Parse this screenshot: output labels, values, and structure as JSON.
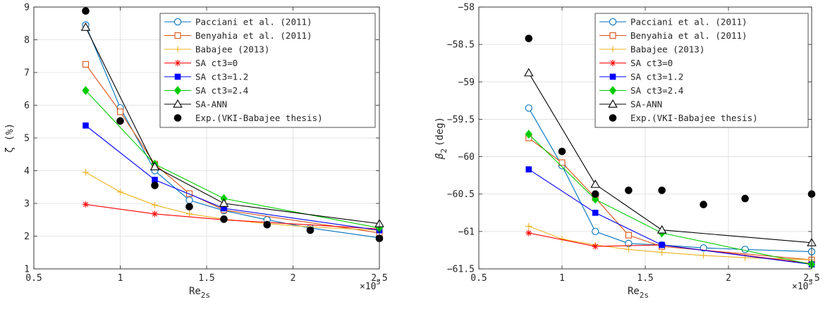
{
  "chart_data": [
    {
      "type": "line",
      "title": "",
      "xlabel": "Re",
      "xlabel_sub": "2s",
      "x_multiplier": "×10",
      "x_multiplier_exp": "5",
      "ylabel": "ζ (%)",
      "xlim": [
        0.5,
        2.5
      ],
      "ylim": [
        1,
        9
      ],
      "xticks": [
        0.5,
        1,
        1.5,
        2,
        2.5
      ],
      "xtick_labels": [
        "0.5",
        "1",
        "1.5",
        "2",
        "2.5"
      ],
      "yticks": [
        1,
        2,
        3,
        4,
        5,
        6,
        7,
        8,
        9
      ],
      "ytick_labels": [
        "1",
        "2",
        "3",
        "4",
        "5",
        "6",
        "7",
        "8",
        "9"
      ],
      "grid": true,
      "legend_position": "top-right",
      "series": [
        {
          "name": "Pacciani et al. (2011)",
          "color": "#0072BD",
          "marker": "circle-open",
          "line": true,
          "x": [
            0.8,
            1.0,
            1.2,
            1.4,
            1.6,
            1.85,
            2.1,
            2.5
          ],
          "y": [
            8.45,
            5.92,
            4.0,
            3.1,
            2.78,
            2.5,
            2.25,
            1.95
          ]
        },
        {
          "name": "Benyahia et al. (2011)",
          "color": "#D95319",
          "marker": "square-open",
          "line": true,
          "x": [
            0.8,
            1.0,
            1.2,
            1.4,
            1.6,
            2.5
          ],
          "y": [
            7.25,
            5.8,
            4.2,
            3.3,
            2.8,
            2.1
          ]
        },
        {
          "name": "Babajee (2013)",
          "color": "#EDB120",
          "marker": "plus",
          "line": true,
          "x": [
            0.8,
            1.0,
            1.2,
            1.4,
            1.6,
            1.85,
            2.1,
            2.5
          ],
          "y": [
            3.95,
            3.35,
            2.95,
            2.68,
            2.52,
            2.38,
            2.28,
            2.18
          ]
        },
        {
          "name": "SA ct3=0",
          "color": "#FF0000",
          "marker": "asterisk",
          "line": true,
          "x": [
            0.8,
            1.2,
            1.6,
            2.5
          ],
          "y": [
            2.97,
            2.68,
            2.5,
            2.22
          ]
        },
        {
          "name": "SA ct3=1.2",
          "color": "#0000FF",
          "marker": "square-filled",
          "line": true,
          "x": [
            0.8,
            1.2,
            1.6,
            2.5
          ],
          "y": [
            5.38,
            3.72,
            2.85,
            2.18
          ]
        },
        {
          "name": "SA ct3=2.4",
          "color": "#00CC00",
          "marker": "diamond-filled",
          "line": true,
          "x": [
            0.8,
            1.2,
            1.6,
            2.5
          ],
          "y": [
            6.45,
            4.2,
            3.15,
            2.25
          ]
        },
        {
          "name": "SA-ANN",
          "color": "#000000",
          "marker": "triangle-open",
          "line": true,
          "x": [
            0.8,
            1.2,
            1.6,
            2.5
          ],
          "y": [
            8.38,
            4.12,
            3.0,
            2.38
          ]
        },
        {
          "name": "Exp.(VKI-Babajee thesis)",
          "color": "#000000",
          "marker": "circle-filled",
          "line": false,
          "x": [
            0.8,
            1.0,
            1.2,
            1.4,
            1.6,
            1.85,
            2.1,
            2.5
          ],
          "y": [
            8.88,
            5.52,
            3.55,
            2.9,
            2.52,
            2.35,
            2.18,
            1.93
          ]
        }
      ]
    },
    {
      "type": "line",
      "title": "",
      "xlabel": "Re",
      "xlabel_sub": "2s",
      "x_multiplier": "×10",
      "x_multiplier_exp": "5",
      "ylabel": "β",
      "ylabel_sub": "2",
      "ylabel_unit": "(deg)",
      "xlim": [
        0.5,
        2.5
      ],
      "ylim": [
        -61.5,
        -58
      ],
      "xticks": [
        0.5,
        1,
        1.5,
        2,
        2.5
      ],
      "xtick_labels": [
        "0.5",
        "1",
        "1.5",
        "2",
        "2.5"
      ],
      "yticks": [
        -61.5,
        -61,
        -60.5,
        -60,
        -59.5,
        -59,
        -58.5,
        -58
      ],
      "ytick_labels": [
        "-61.5",
        "-61",
        "-60.5",
        "-60",
        "-59.5",
        "-59",
        "-58.5",
        "-58"
      ],
      "grid": true,
      "legend_position": "top-right",
      "series": [
        {
          "name": "Pacciani et al. (2011)",
          "color": "#0072BD",
          "marker": "circle-open",
          "line": true,
          "x": [
            0.8,
            1.0,
            1.2,
            1.4,
            1.6,
            1.85,
            2.1,
            2.5
          ],
          "y": [
            -59.35,
            -60.12,
            -61.0,
            -61.16,
            -61.18,
            -61.22,
            -61.24,
            -61.27
          ]
        },
        {
          "name": "Benyahia et al. (2011)",
          "color": "#D95319",
          "marker": "square-open",
          "line": true,
          "x": [
            0.8,
            1.0,
            1.2,
            1.4,
            1.6,
            2.5
          ],
          "y": [
            -59.75,
            -60.08,
            -60.55,
            -61.05,
            -61.2,
            -61.38
          ]
        },
        {
          "name": "Babajee (2013)",
          "color": "#EDB120",
          "marker": "plus",
          "line": true,
          "x": [
            0.8,
            1.0,
            1.2,
            1.4,
            1.6,
            1.85,
            2.1,
            2.5
          ],
          "y": [
            -60.93,
            -61.1,
            -61.18,
            -61.24,
            -61.28,
            -61.32,
            -61.35,
            -61.38
          ]
        },
        {
          "name": "SA ct3=0",
          "color": "#FF0000",
          "marker": "asterisk",
          "line": true,
          "x": [
            0.8,
            1.2,
            1.6,
            2.5
          ],
          "y": [
            -61.02,
            -61.2,
            -61.18,
            -61.43
          ]
        },
        {
          "name": "SA ct3=1.2",
          "color": "#0000FF",
          "marker": "square-filled",
          "line": true,
          "x": [
            0.8,
            1.2,
            1.6,
            2.5
          ],
          "y": [
            -60.17,
            -60.75,
            -61.18,
            -61.44
          ]
        },
        {
          "name": "SA ct3=2.4",
          "color": "#00CC00",
          "marker": "diamond-filled",
          "line": true,
          "x": [
            0.8,
            1.2,
            1.6,
            2.5
          ],
          "y": [
            -59.7,
            -60.57,
            -61.02,
            -61.44
          ]
        },
        {
          "name": "SA-ANN",
          "color": "#000000",
          "marker": "triangle-open",
          "line": true,
          "x": [
            0.8,
            1.2,
            1.6,
            2.5
          ],
          "y": [
            -58.88,
            -60.37,
            -60.98,
            -61.15
          ]
        },
        {
          "name": "Exp.(VKI-Babajee thesis)",
          "color": "#000000",
          "marker": "circle-filled",
          "line": false,
          "x": [
            0.8,
            1.0,
            1.2,
            1.4,
            1.6,
            1.85,
            2.1,
            2.5
          ],
          "y": [
            -58.42,
            -59.93,
            -60.5,
            -60.45,
            -60.45,
            -60.64,
            -60.56,
            -60.5
          ]
        }
      ]
    }
  ]
}
